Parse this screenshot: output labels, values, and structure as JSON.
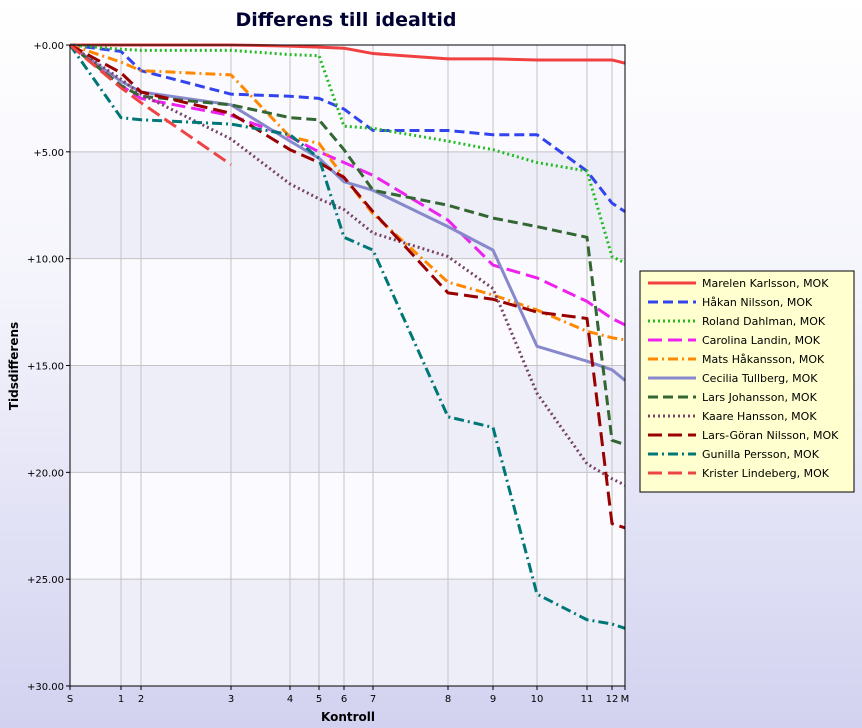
{
  "chart_data": {
    "type": "line",
    "title": "Differens till idealtid",
    "xlabel": "Kontroll",
    "ylabel": "Tidsdifferens",
    "x_ticks": [
      {
        "label": "S",
        "x": 0
      },
      {
        "label": "1",
        "x": 1
      },
      {
        "label": "2",
        "x": 2
      },
      {
        "label": "3",
        "x": 3
      },
      {
        "label": "4",
        "x": 4
      },
      {
        "label": "5",
        "x": 5
      },
      {
        "label": "6",
        "x": 6
      },
      {
        "label": "7",
        "x": 7
      },
      {
        "label": "8",
        "x": 8
      },
      {
        "label": "9",
        "x": 9
      },
      {
        "label": "10",
        "x": 10
      },
      {
        "label": "11",
        "x": 11
      },
      {
        "label": "12",
        "x": 12
      },
      {
        "label": "M",
        "x": 13
      }
    ],
    "y_ticks": [
      "+0.00",
      "+5.00",
      "+10.00",
      "+15.00",
      "+20.00",
      "+25.00",
      "+30.00"
    ],
    "ylim": [
      0,
      30
    ],
    "y_inverted": true,
    "grid": true,
    "legend_position": "right",
    "series": [
      {
        "name": "Marelen Karlsson, MOK",
        "color": "#f04040",
        "dash": "solid",
        "values": [
          0,
          0,
          0,
          0,
          0.05,
          0.1,
          0.15,
          0.4,
          0.65,
          0.65,
          0.7,
          0.7,
          0.7,
          0.85
        ]
      },
      {
        "name": "Håkan Nilsson, MOK",
        "color": "#3344ee",
        "dash": "dash",
        "values": [
          0,
          0.3,
          1.2,
          2.3,
          2.4,
          2.5,
          3.0,
          4.0,
          4.0,
          4.2,
          4.2,
          5.9,
          7.4,
          7.8
        ]
      },
      {
        "name": "Roland Dahlman, MOK",
        "color": "#22bb22",
        "dash": "dot",
        "values": [
          0,
          0.2,
          0.25,
          0.25,
          0.45,
          0.5,
          3.8,
          3.9,
          4.5,
          4.9,
          5.5,
          5.9,
          9.9,
          10.2
        ]
      },
      {
        "name": "Carolina Landin, MOK",
        "color": "#ee22ee",
        "dash": "longdash",
        "values": [
          0,
          1.9,
          2.5,
          3.3,
          4.3,
          5.0,
          5.5,
          6.1,
          8.2,
          10.3,
          10.9,
          12.0,
          12.8,
          13.1
        ]
      },
      {
        "name": "Mats Håkansson, MOK",
        "color": "#ff8800",
        "dash": "dashdot",
        "values": [
          0,
          0.8,
          1.2,
          1.4,
          4.3,
          4.6,
          6.2,
          7.9,
          11.1,
          11.7,
          12.4,
          13.4,
          13.7,
          13.8
        ]
      },
      {
        "name": "Cecilia Tullberg, MOK",
        "color": "#8888cc",
        "dash": "solid",
        "values": [
          0,
          1.7,
          2.2,
          2.8,
          4.5,
          5.3,
          6.4,
          6.8,
          8.5,
          9.6,
          14.1,
          14.8,
          15.2,
          15.7
        ]
      },
      {
        "name": "Lars Johansson, MOK",
        "color": "#336633",
        "dash": "dash",
        "values": [
          0,
          1.9,
          2.4,
          2.8,
          3.4,
          3.5,
          4.9,
          6.8,
          7.5,
          8.1,
          8.5,
          9.0,
          18.5,
          18.7
        ]
      },
      {
        "name": "Kaare Hansson, MOK",
        "color": "#774466",
        "dash": "dot",
        "values": [
          0,
          1.6,
          2.3,
          4.4,
          6.5,
          7.2,
          7.7,
          8.8,
          9.9,
          11.4,
          16.3,
          19.6,
          20.3,
          20.6
        ]
      },
      {
        "name": "Lars-Göran Nilsson, MOK",
        "color": "#990000",
        "dash": "longdash",
        "values": [
          0,
          1.3,
          2.2,
          3.2,
          4.9,
          5.5,
          6.2,
          7.8,
          11.6,
          11.9,
          12.5,
          12.8,
          22.4,
          22.6
        ]
      },
      {
        "name": "Gunilla Persson, MOK",
        "color": "#007777",
        "dash": "dashdot",
        "values": [
          0,
          3.4,
          3.5,
          3.7,
          4.2,
          5.3,
          9.0,
          9.6,
          17.4,
          17.9,
          25.7,
          26.9,
          27.1,
          27.3
        ]
      },
      {
        "name": "Krister Lindeberg, MOK",
        "color": "#ee4444",
        "dash": "longdash",
        "values": [
          0,
          2.0,
          2.7,
          5.6
        ]
      }
    ]
  }
}
